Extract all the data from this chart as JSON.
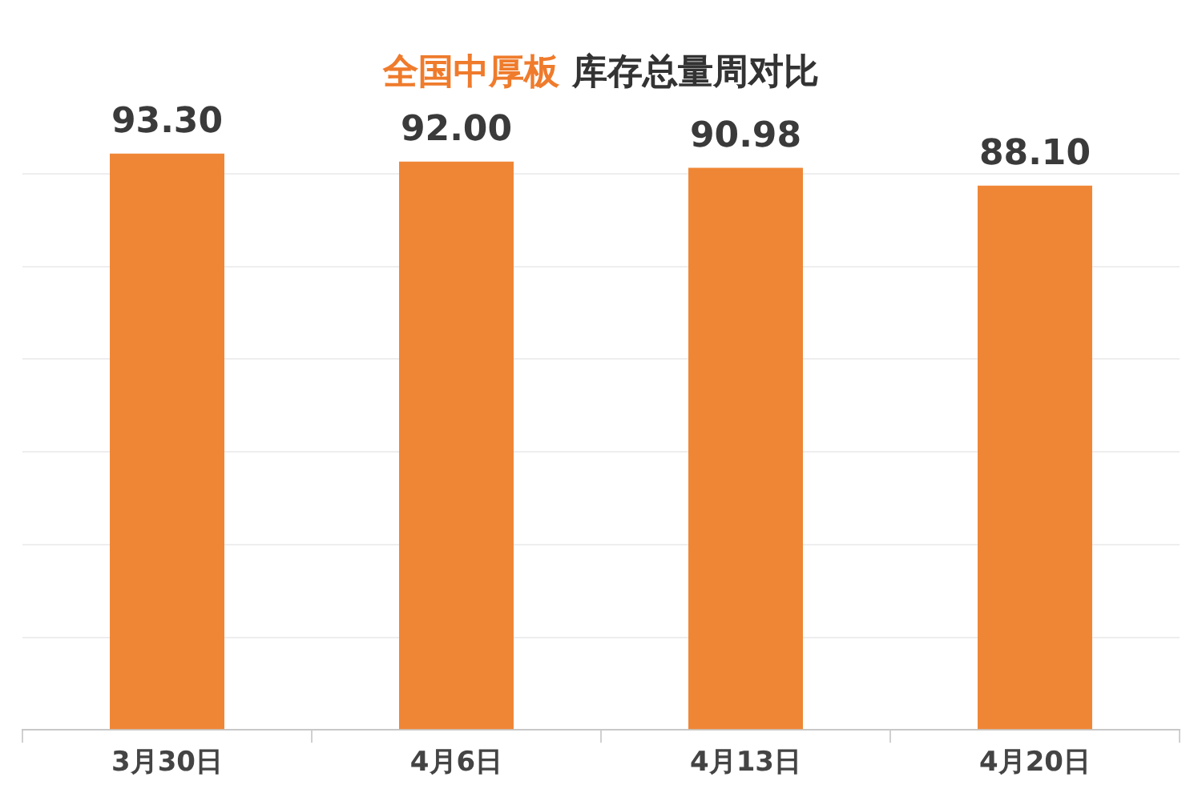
{
  "chart_data": {
    "type": "bar",
    "title": "全国中厚板 库存总量周对比",
    "categories": [
      "3月30日",
      "4月6日",
      "4月13日",
      "4月20日"
    ],
    "values": [
      93.3,
      92.0,
      90.98,
      88.1
    ],
    "value_labels": [
      "93.30",
      "92.00",
      "90.98",
      "88.10"
    ],
    "color": "#ef8636",
    "yticks": [
      {
        "value": 0,
        "label": null
      },
      {
        "value": 15,
        "label": null
      },
      {
        "value": 30,
        "label": null
      },
      {
        "value": 45,
        "label": null
      },
      {
        "value": 60,
        "label": null
      },
      {
        "value": 75,
        "label": null
      },
      {
        "value": 90,
        "label": null
      }
    ],
    "grid": "y",
    "tick_labels": "x",
    "legend": false
  }
}
